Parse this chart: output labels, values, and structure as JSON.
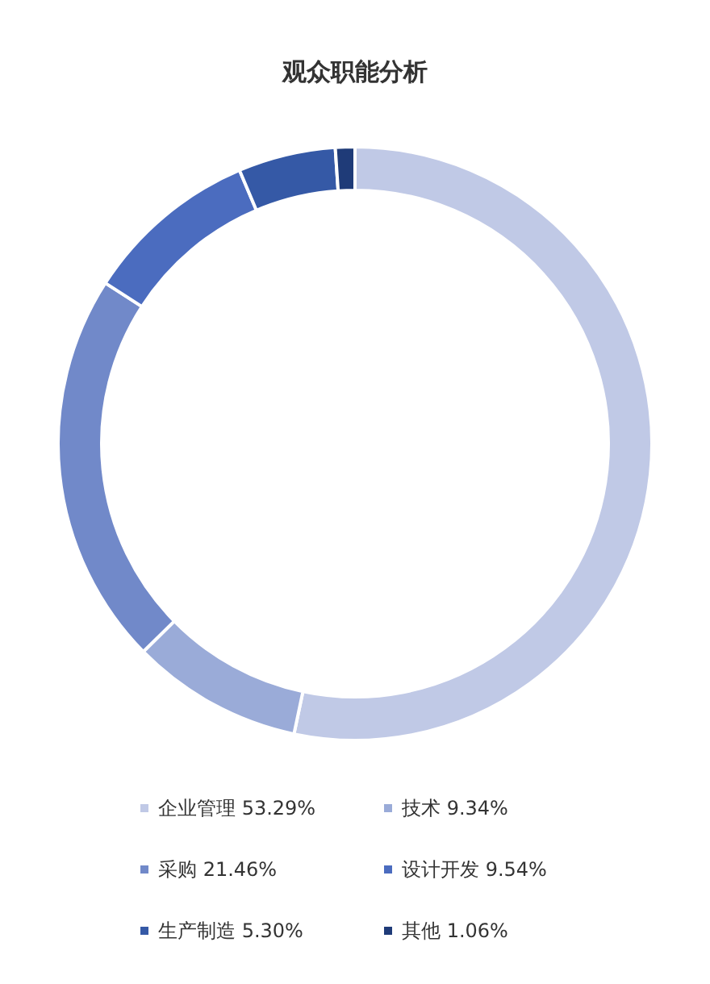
{
  "chart_data": {
    "type": "donut",
    "title": "观众职能分析",
    "categories": [
      "企业管理",
      "技术",
      "采购",
      "设计开发",
      "生产制造",
      "其他"
    ],
    "values": [
      53.29,
      9.34,
      21.46,
      9.54,
      5.3,
      1.06
    ],
    "value_labels": [
      "53.29%",
      "9.34%",
      "21.46%",
      "9.54%",
      "5.30%",
      "1.06%"
    ],
    "colors": [
      "#c0c9e6",
      "#9aabd8",
      "#7189c9",
      "#4b6cbf",
      "#3559a6",
      "#1f3b78"
    ],
    "legend": "bottom"
  }
}
